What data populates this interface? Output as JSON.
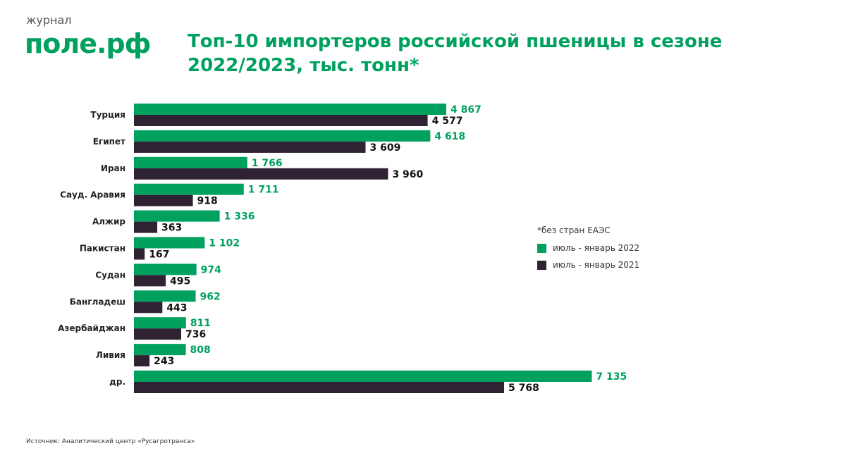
{
  "logo": {
    "small": "журнал",
    "big": "поле.рф"
  },
  "title": "Топ-10 импортеров российской пшеницы в сезоне 2022/2023, тыс. тонн*",
  "source": "Источник: Аналитический центр «Русагротранса»",
  "colors": {
    "s2022": "#00a05e",
    "s2021": "#2e2233"
  },
  "chart_data": {
    "type": "bar",
    "orientation": "horizontal",
    "title": "Топ-10 импортеров российской пшеницы в сезоне 2022/2023, тыс. тонн*",
    "note": "*без стран ЕАЭС",
    "categories": [
      "Турция",
      "Египет",
      "Иран",
      "Сауд. Аравия",
      "Алжир",
      "Пакистан",
      "Судан",
      "Бангладеш",
      "Азербайджан",
      "Ливия",
      "др."
    ],
    "series": [
      {
        "name": "июль - январь 2022",
        "values": [
          4867,
          4618,
          1766,
          1711,
          1336,
          1102,
          974,
          962,
          811,
          808,
          7135
        ],
        "labels": [
          "4 867",
          "4 618",
          "1 766",
          "1 711",
          "1 336",
          "1 102",
          "974",
          "962",
          "811",
          "808",
          "7 135"
        ]
      },
      {
        "name": "июль - январь 2021",
        "values": [
          4577,
          3609,
          3960,
          918,
          363,
          167,
          495,
          443,
          736,
          243,
          5768
        ],
        "labels": [
          "4 577",
          "3 609",
          "3 960",
          "918",
          "363",
          "167",
          "495",
          "443",
          "736",
          "243",
          "5 768"
        ]
      }
    ],
    "xlim": [
      0,
      7135
    ],
    "legend": "right",
    "grid": false
  }
}
